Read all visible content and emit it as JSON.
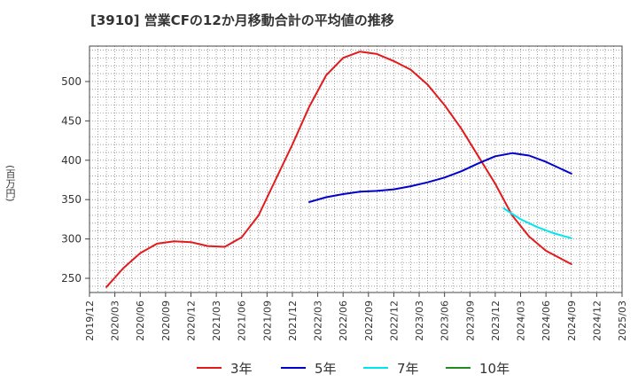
{
  "title": "[3910]  営業CFの12か月移動合計の平均値の推移",
  "chart_data": {
    "type": "line",
    "title": "[3910]  営業CFの12か月移動合計の平均値の推移",
    "ylabel": "(百万円)",
    "xlabel": "",
    "ylim": [
      232,
      545
    ],
    "yticks": [
      250,
      300,
      350,
      400,
      450,
      500
    ],
    "grid": true,
    "legend_position": "bottom",
    "x_ticks": [
      "2019/12",
      "2020/03",
      "2020/06",
      "2020/09",
      "2020/12",
      "2021/03",
      "2021/06",
      "2021/09",
      "2021/12",
      "2022/03",
      "2022/06",
      "2022/09",
      "2022/12",
      "2023/03",
      "2023/06",
      "2023/09",
      "2023/12",
      "2024/03",
      "2024/06",
      "2024/09",
      "2024/12",
      "2025/03"
    ],
    "series": [
      {
        "name": "3年",
        "color": "#e31a1c",
        "x": [
          "2020/02",
          "2020/04",
          "2020/06",
          "2020/08",
          "2020/10",
          "2020/12",
          "2021/02",
          "2021/04",
          "2021/06",
          "2021/08",
          "2021/10",
          "2021/12",
          "2022/02",
          "2022/04",
          "2022/06",
          "2022/08",
          "2022/10",
          "2022/12",
          "2023/02",
          "2023/04",
          "2023/06",
          "2023/08",
          "2023/10",
          "2023/12",
          "2024/02",
          "2024/04",
          "2024/06",
          "2024/09"
        ],
        "values": [
          239,
          263,
          282,
          294,
          297,
          296,
          291,
          290,
          302,
          330,
          375,
          420,
          468,
          508,
          530,
          538,
          535,
          526,
          515,
          496,
          470,
          440,
          405,
          370,
          330,
          303,
          285,
          268
        ]
      },
      {
        "name": "5年",
        "color": "#0000cc",
        "x": [
          "2022/02",
          "2022/04",
          "2022/06",
          "2022/08",
          "2022/10",
          "2022/12",
          "2023/02",
          "2023/04",
          "2023/06",
          "2023/08",
          "2023/10",
          "2023/12",
          "2024/02",
          "2024/04",
          "2024/06",
          "2024/09"
        ],
        "values": [
          347,
          353,
          357,
          360,
          361,
          363,
          367,
          372,
          378,
          386,
          396,
          405,
          409,
          406,
          398,
          383
        ]
      },
      {
        "name": "7年",
        "color": "#00e5ee",
        "x": [
          "2024/01",
          "2024/03",
          "2024/05",
          "2024/07",
          "2024/09"
        ],
        "values": [
          339,
          325,
          315,
          307,
          301
        ]
      },
      {
        "name": "10年",
        "color": "#228b22",
        "x": [],
        "values": []
      }
    ]
  }
}
